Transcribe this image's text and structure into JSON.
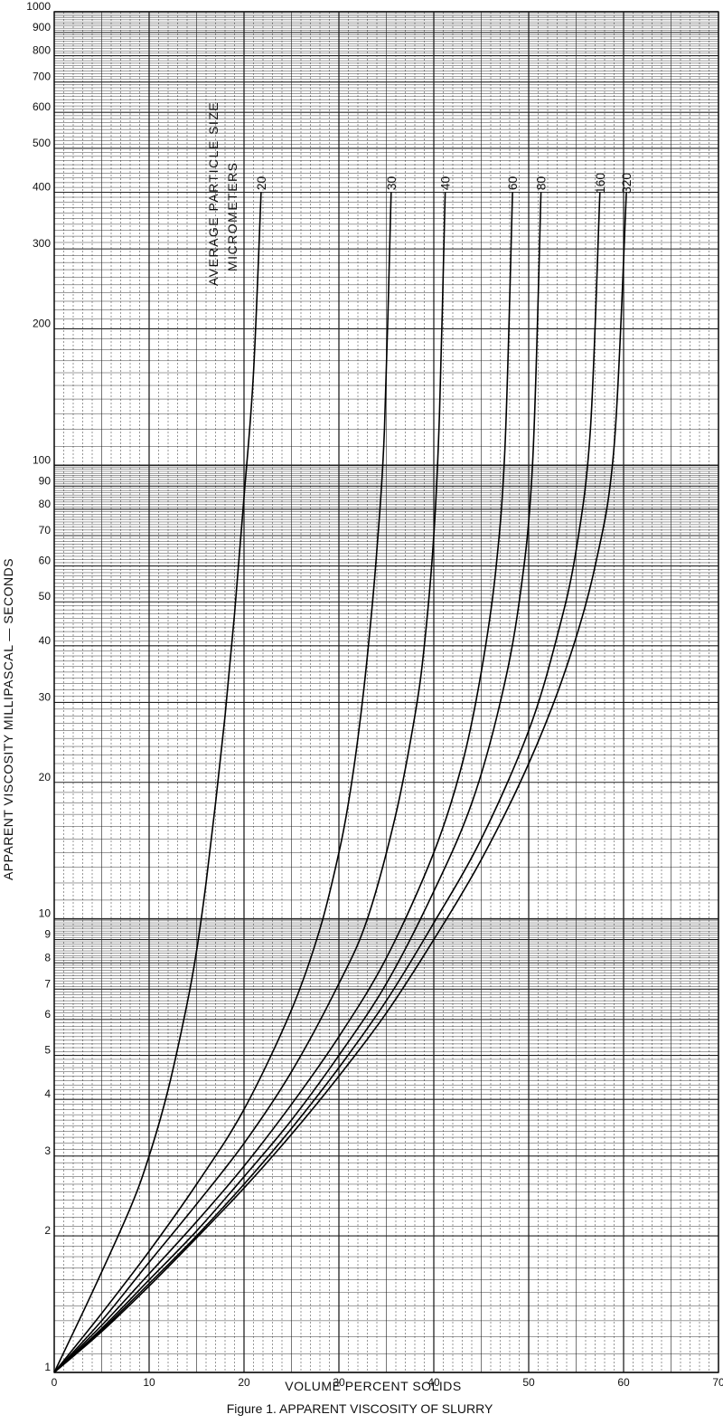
{
  "chart_data": {
    "type": "line",
    "title": "Figure 1. APPARENT VISCOSITY OF SLURRY",
    "xlabel": "VOLUME PERCENT SOLIDS",
    "ylabel": "APPARENT VISCOSITY MILLIPASCAL — SECONDS",
    "legend_title": [
      "AVERAGE PARTICLE SIZE",
      "MICROMETERS"
    ],
    "xlim": [
      0,
      70
    ],
    "ylim": [
      1,
      1000
    ],
    "y_scale": "log",
    "grid": true,
    "x_ticks": [
      "0",
      "10",
      "20",
      "30",
      "40",
      "50",
      "60",
      "70"
    ],
    "y_ticks": [
      {
        "value": 1,
        "label": "1"
      },
      {
        "value": 2,
        "label": "2"
      },
      {
        "value": 3,
        "label": "3"
      },
      {
        "value": 4,
        "label": "4"
      },
      {
        "value": 5,
        "label": "5"
      },
      {
        "value": 6,
        "label": "6"
      },
      {
        "value": 7,
        "label": "7"
      },
      {
        "value": 8,
        "label": "8"
      },
      {
        "value": 9,
        "label": "9"
      },
      {
        "value": 10,
        "label": "10"
      },
      {
        "value": 20,
        "label": "20"
      },
      {
        "value": 30,
        "label": "30"
      },
      {
        "value": 40,
        "label": "40"
      },
      {
        "value": 50,
        "label": "50"
      },
      {
        "value": 60,
        "label": "60"
      },
      {
        "value": 70,
        "label": "70"
      },
      {
        "value": 80,
        "label": "80"
      },
      {
        "value": 90,
        "label": "90"
      },
      {
        "value": 100,
        "label": "100"
      },
      {
        "value": 200,
        "label": "200"
      },
      {
        "value": 300,
        "label": "300"
      },
      {
        "value": 400,
        "label": "400"
      },
      {
        "value": 500,
        "label": "500"
      },
      {
        "value": 600,
        "label": "600"
      },
      {
        "value": 700,
        "label": "700"
      },
      {
        "value": 800,
        "label": "800"
      },
      {
        "value": 900,
        "label": "900"
      },
      {
        "value": 1000,
        "label": "1000"
      }
    ],
    "series": [
      {
        "label": "20",
        "x": [
          0,
          4,
          8,
          10,
          12,
          14,
          15,
          16,
          17,
          18,
          19,
          20,
          21,
          21.8
        ],
        "y": [
          1,
          1.5,
          2.3,
          3,
          4.2,
          6.5,
          8.5,
          12,
          18,
          28,
          47,
          85,
          160,
          400
        ]
      },
      {
        "label": "30",
        "x": [
          0,
          5,
          10,
          15,
          20,
          25,
          28,
          30,
          31,
          32,
          33,
          34,
          34.8,
          35.5
        ],
        "y": [
          1,
          1.35,
          1.85,
          2.6,
          3.8,
          6.3,
          9.5,
          14,
          18,
          25,
          38,
          65,
          120,
          400
        ]
      },
      {
        "label": "40",
        "x": [
          0,
          5,
          10,
          15,
          20,
          25,
          30,
          33,
          36,
          38,
          39,
          40,
          40.6,
          41.2
        ],
        "y": [
          1,
          1.3,
          1.75,
          2.35,
          3.2,
          4.6,
          7.2,
          10,
          17,
          28,
          40,
          70,
          130,
          400
        ]
      },
      {
        "label": "60",
        "x": [
          0,
          5,
          10,
          15,
          20,
          25,
          30,
          35,
          40,
          43,
          45,
          46.5,
          47.5,
          48.3
        ],
        "y": [
          1,
          1.27,
          1.65,
          2.15,
          2.85,
          3.9,
          5.5,
          8.2,
          14,
          22,
          35,
          58,
          110,
          400
        ]
      },
      {
        "label": "80",
        "x": [
          0,
          5,
          10,
          15,
          20,
          25,
          30,
          35,
          40,
          44,
          47,
          49,
          50.4,
          51.3
        ],
        "y": [
          1,
          1.25,
          1.6,
          2.05,
          2.7,
          3.6,
          5,
          7.2,
          11.5,
          18,
          30,
          50,
          100,
          400
        ]
      },
      {
        "label": "160",
        "x": [
          0,
          5,
          10,
          15,
          20,
          25,
          30,
          35,
          40,
          45,
          50,
          53,
          55,
          56.5,
          57.5
        ],
        "y": [
          1,
          1.24,
          1.57,
          2.0,
          2.6,
          3.45,
          4.7,
          6.6,
          9.8,
          15,
          26,
          42,
          65,
          120,
          400
        ]
      },
      {
        "label": "320",
        "x": [
          0,
          5,
          10,
          15,
          20,
          25,
          30,
          35,
          40,
          45,
          50,
          54,
          57,
          59,
          60.3
        ],
        "y": [
          1,
          1.23,
          1.55,
          1.98,
          2.55,
          3.35,
          4.5,
          6.2,
          9,
          13.5,
          22,
          36,
          60,
          110,
          400
        ]
      }
    ]
  }
}
